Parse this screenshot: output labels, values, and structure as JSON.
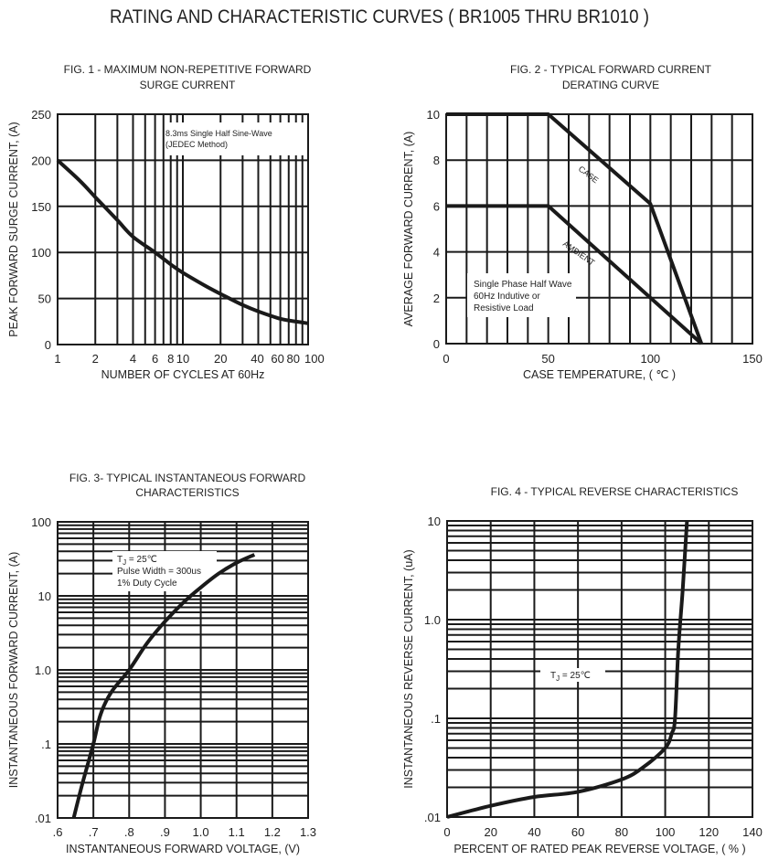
{
  "page_title": "RATING AND CHARACTERISTIC CURVES ( BR1005 THRU BR1010 )",
  "chart_data": [
    {
      "type": "line",
      "title": [
        "FIG. 1 - MAXIMUM NON-REPETITIVE FORWARD",
        "SURGE CURRENT"
      ],
      "xlabel": "NUMBER OF CYCLES AT 60Hz",
      "ylabel": "PEAK FORWARD SURGE CURRENT, (A)",
      "xscale": "log",
      "xlim": [
        1,
        100
      ],
      "ylim": [
        0,
        250
      ],
      "xticks": [
        1,
        2,
        4,
        6,
        8,
        10,
        20,
        40,
        60,
        80,
        100
      ],
      "xtick_labels": [
        "1",
        "2",
        "4",
        "6",
        "8",
        "10",
        "20",
        "40",
        "60",
        "80",
        "100"
      ],
      "yticks": [
        0,
        50,
        100,
        150,
        200,
        250
      ],
      "ytick_labels": [
        "0",
        "50",
        "100",
        "150",
        "200",
        "250"
      ],
      "grid": true,
      "annotation": [
        "8.3ms Single Half Sine-Wave",
        "(JEDEC Method)"
      ],
      "series": [
        {
          "x": [
            1,
            1.5,
            2,
            3,
            4,
            6,
            8,
            10,
            15,
            20,
            30,
            40,
            60,
            80,
            100
          ],
          "y": [
            200,
            178,
            160,
            135,
            117,
            100,
            87,
            78,
            64,
            55,
            43,
            36,
            28,
            25,
            23
          ]
        }
      ]
    },
    {
      "type": "line",
      "title": [
        "FIG. 2 - TYPICAL FORWARD CURRENT",
        "DERATING CURVE"
      ],
      "xlabel": "CASE TEMPERATURE, ( ℃ )",
      "ylabel": "AVERAGE FORWARD  CURRENT, (A)",
      "xlim": [
        0,
        150
      ],
      "ylim": [
        0,
        10
      ],
      "xticks": [
        0,
        50,
        100,
        150
      ],
      "xtick_labels": [
        "0",
        "50",
        "100",
        "150"
      ],
      "yticks": [
        0,
        2,
        4,
        6,
        8,
        10
      ],
      "ytick_labels": [
        "0",
        "2",
        "4",
        "6",
        "8",
        "10"
      ],
      "grid": true,
      "annotation": [
        "Single Phase Half Wave",
        "60Hz Indutive or",
        "Resistive Load"
      ],
      "series": [
        {
          "name": "CASE",
          "x": [
            0,
            50,
            100,
            125
          ],
          "y": [
            10,
            10,
            6.1,
            0
          ]
        },
        {
          "name": "AMBIENT",
          "x": [
            0,
            50,
            125
          ],
          "y": [
            6,
            6,
            0
          ]
        }
      ]
    },
    {
      "type": "line",
      "title": [
        "FIG. 3- TYPICAL INSTANTANEOUS FORWARD",
        "CHARACTERISTICS"
      ],
      "xlabel": "INSTANTANEOUS FORWARD VOLTAGE, (V)",
      "ylabel": "INSTANTANEOUS FORWARD CURRENT, (A)",
      "yscale": "log",
      "xlim": [
        0.6,
        1.3
      ],
      "ylim": [
        0.01,
        100
      ],
      "xticks": [
        0.6,
        0.7,
        0.8,
        0.9,
        1.0,
        1.1,
        1.2,
        1.3
      ],
      "xtick_labels": [
        ".6",
        ".7",
        ".8",
        ".9",
        "1.0",
        "1.1",
        "1.2",
        "1.3"
      ],
      "yticks": [
        0.01,
        0.1,
        1,
        10,
        100
      ],
      "ytick_labels": [
        ".01",
        ".1",
        "1.0",
        "10",
        "100"
      ],
      "grid": true,
      "annotation": {
        "t": "T",
        "sub": "J",
        "rest": " = 25℃",
        "lines": [
          "Pulse Width = 300us",
          "1% Duty Cycle"
        ]
      },
      "series": [
        {
          "x": [
            0.645,
            0.67,
            0.7,
            0.72,
            0.75,
            0.8,
            0.85,
            0.9,
            0.95,
            1.0,
            1.05,
            1.1,
            1.15
          ],
          "y": [
            0.01,
            0.03,
            0.1,
            0.25,
            0.5,
            1.0,
            2.3,
            4.5,
            8,
            13,
            20,
            28,
            36
          ]
        }
      ]
    },
    {
      "type": "line",
      "title": [
        "FIG. 4 - TYPICAL REVERSE CHARACTERISTICS"
      ],
      "xlabel": "PERCENT OF RATED PEAK REVERSE VOLTAGE, ( % )",
      "ylabel": "INSTANTANEOUS REVERSE CURRENT, (uA)",
      "yscale": "log",
      "xlim": [
        0,
        140
      ],
      "ylim": [
        0.01,
        10
      ],
      "xticks": [
        0,
        20,
        40,
        60,
        80,
        100,
        120,
        140
      ],
      "xtick_labels": [
        "0",
        "20",
        "40",
        "60",
        "80",
        "100",
        "120",
        "140"
      ],
      "yticks": [
        0.01,
        0.1,
        1,
        10
      ],
      "ytick_labels": [
        ".01",
        ".1",
        "1.0",
        "10"
      ],
      "grid": true,
      "annotation": {
        "t": "T",
        "sub": "J",
        "rest": " = 25℃"
      },
      "series": [
        {
          "x": [
            0,
            20,
            40,
            60,
            80,
            90,
            100,
            103,
            104.5,
            106,
            108,
            110
          ],
          "y": [
            0.01,
            0.013,
            0.016,
            0.018,
            0.024,
            0.032,
            0.05,
            0.07,
            0.1,
            0.5,
            2,
            10
          ]
        }
      ]
    }
  ]
}
